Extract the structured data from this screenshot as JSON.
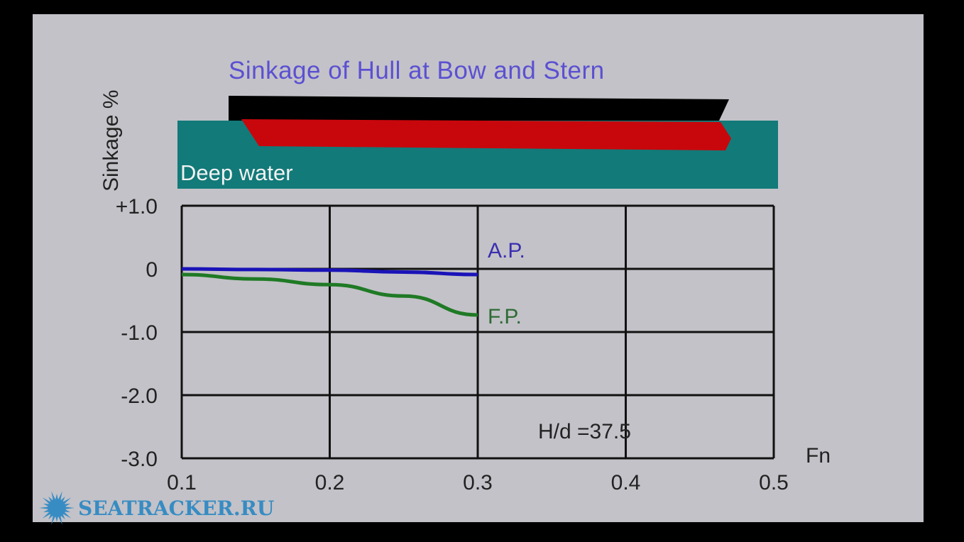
{
  "chart_data": {
    "type": "line",
    "title": "Sinkage of Hull at Bow and Stern",
    "ylabel": "Sinkage %",
    "xlabel": "Fn",
    "xlim": [
      0.1,
      0.5
    ],
    "ylim": [
      -3.0,
      1.0
    ],
    "x_ticks": [
      "0.1",
      "0.2",
      "0.3",
      "0.4",
      "0.5"
    ],
    "y_ticks": [
      "+1.0",
      "0",
      "-1.0",
      "-2.0",
      "-3.0"
    ],
    "grid": true,
    "inset_label": "Deep water",
    "annotation": "H/d =37.5",
    "series": [
      {
        "name": "A.P.",
        "color": "#1a13b8",
        "x": [
          0.1,
          0.15,
          0.2,
          0.25,
          0.3
        ],
        "values": [
          0.0,
          -0.01,
          -0.02,
          -0.05,
          -0.09
        ]
      },
      {
        "name": "F.P.",
        "color": "#1f7a25",
        "x": [
          0.1,
          0.15,
          0.2,
          0.25,
          0.3
        ],
        "values": [
          -0.09,
          -0.16,
          -0.25,
          -0.43,
          -0.73
        ]
      }
    ],
    "colors": {
      "water": "#127a79",
      "hull_deck": "#000000",
      "hull_body": "#c8070c",
      "title": "#5b50d2"
    }
  },
  "watermark": {
    "text": "SEATRACKER.RU",
    "icon": "sun-icon",
    "color": "#378cc3"
  }
}
